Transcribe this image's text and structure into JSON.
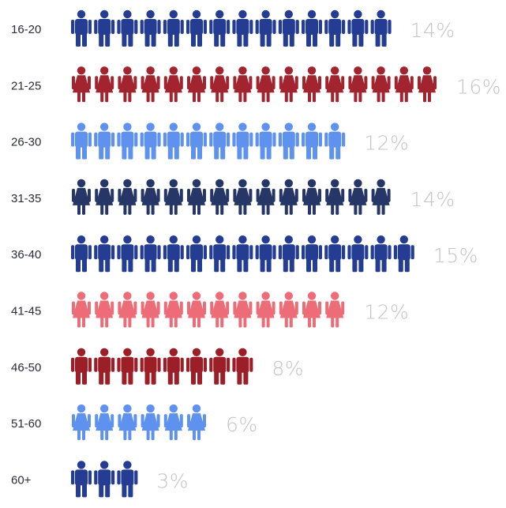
{
  "chart_data": {
    "type": "bar",
    "unit": "%",
    "categories": [
      "16-20",
      "21-25",
      "26-30",
      "31-35",
      "36-40",
      "41-45",
      "46-50",
      "51-60",
      "60+"
    ],
    "values": [
      14,
      16,
      12,
      14,
      15,
      12,
      8,
      6,
      3
    ],
    "value_labels": [
      "14%",
      "16%",
      "12%",
      "14%",
      "15%",
      "12%",
      "8%",
      "6%",
      "3%"
    ],
    "icon_counts": [
      14,
      16,
      12,
      14,
      15,
      12,
      8,
      6,
      3
    ],
    "icon_genders": [
      "male",
      "female",
      "male",
      "female",
      "male",
      "female",
      "male",
      "female",
      "male"
    ],
    "colors": [
      "#243d92",
      "#a1242e",
      "#5f92ee",
      "#263667",
      "#243d92",
      "#ec6c78",
      "#9c1f28",
      "#5f92ee",
      "#243d92"
    ],
    "label_color": "#c4c4c4",
    "title": "",
    "xlabel": "",
    "ylabel": ""
  }
}
